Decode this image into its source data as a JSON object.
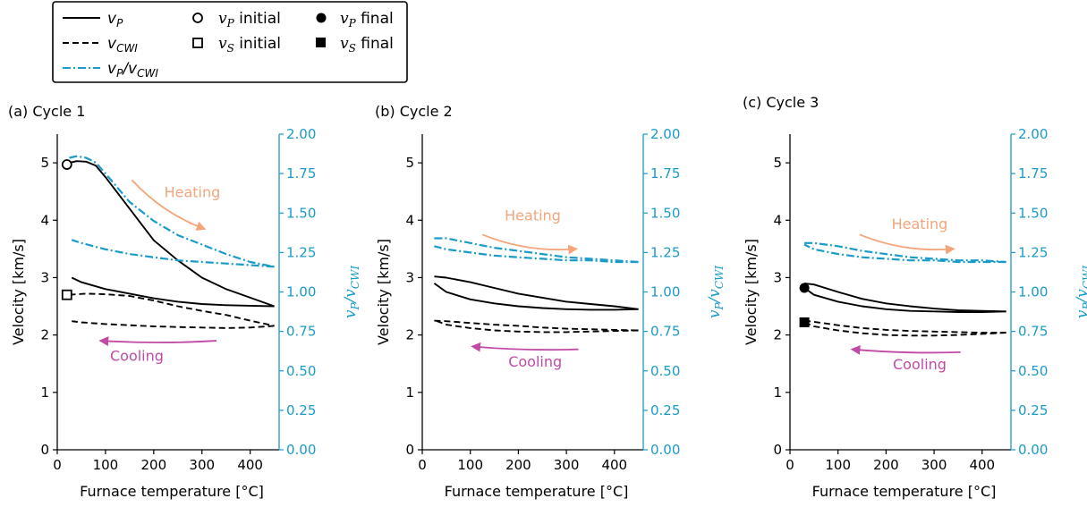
{
  "legend": {
    "items": [
      {
        "key": "vp_line",
        "label": "v",
        "sub": "P",
        "suffix": ""
      },
      {
        "key": "vcwi_line",
        "label": "v",
        "sub": "CWI",
        "suffix": ""
      },
      {
        "key": "ratio",
        "label": "v",
        "sub": "P",
        "suffix": "/v",
        "sub2": "CWI"
      },
      {
        "key": "vp_init",
        "label": "v",
        "sub": "P",
        "suffix": " initial"
      },
      {
        "key": "vs_init",
        "label": "v",
        "sub": "S",
        "suffix": " initial"
      },
      {
        "key": "vp_final",
        "label": "v",
        "sub": "P",
        "suffix": " final"
      },
      {
        "key": "vs_final",
        "label": "v",
        "sub": "S",
        "suffix": " final"
      }
    ]
  },
  "colors": {
    "vp": "#000000",
    "vcwi": "#000000",
    "ratio": "#1a9bc9",
    "heating": "#f4a57a",
    "cooling": "#c04aa5"
  },
  "axes_text": {
    "xlabel": "Furnace temperature [°C]",
    "ylabel": "Velocity [km/s]",
    "y2label_main": "v",
    "y2label_sub1": "P",
    "y2label_mid": "/v",
    "y2label_sub2": "CWI",
    "xticks": [
      0,
      100,
      200,
      300,
      400
    ],
    "yticks": [
      0,
      1,
      2,
      3,
      4,
      5
    ],
    "y2ticks": [
      "0.00",
      "0.25",
      "0.50",
      "0.75",
      "1.00",
      "1.25",
      "1.50",
      "1.75",
      "2.00"
    ],
    "heating_label": "Heating",
    "cooling_label": "Cooling"
  },
  "chart_data": [
    {
      "type": "line",
      "title": "(a) Cycle 1",
      "xlabel": "Furnace temperature [°C]",
      "ylabel": "Velocity [km/s]",
      "y2label": "vP/vCWI",
      "xlim": [
        0,
        460
      ],
      "ylim": [
        0,
        5.5
      ],
      "y2lim": [
        0,
        2.0
      ],
      "series": [
        {
          "key": "vp_heating",
          "axis": "left",
          "style": "solid",
          "x": [
            25,
            40,
            60,
            80,
            100,
            150,
            200,
            250,
            300,
            350,
            400,
            450
          ],
          "y": [
            5.0,
            5.03,
            5.02,
            4.95,
            4.75,
            4.2,
            3.65,
            3.3,
            3.0,
            2.8,
            2.65,
            2.5
          ]
        },
        {
          "key": "vp_cooling",
          "axis": "left",
          "style": "solid",
          "x": [
            450,
            400,
            350,
            300,
            250,
            200,
            150,
            100,
            50,
            30
          ],
          "y": [
            2.5,
            2.51,
            2.52,
            2.54,
            2.58,
            2.64,
            2.72,
            2.8,
            2.92,
            3.0
          ]
        },
        {
          "key": "vcwi_heating",
          "axis": "left",
          "style": "dashed",
          "x": [
            25,
            60,
            100,
            150,
            200,
            250,
            300,
            350,
            400,
            450
          ],
          "y": [
            2.7,
            2.72,
            2.71,
            2.68,
            2.6,
            2.5,
            2.42,
            2.35,
            2.25,
            2.16
          ]
        },
        {
          "key": "vcwi_cooling",
          "axis": "left",
          "style": "dashed",
          "x": [
            450,
            400,
            350,
            300,
            250,
            200,
            150,
            100,
            50,
            30
          ],
          "y": [
            2.16,
            2.13,
            2.12,
            2.13,
            2.14,
            2.15,
            2.17,
            2.19,
            2.22,
            2.24
          ]
        },
        {
          "key": "ratio_heating",
          "axis": "right",
          "style": "dashdot",
          "x": [
            25,
            40,
            60,
            80,
            100,
            150,
            200,
            250,
            300,
            350,
            400,
            450
          ],
          "y": [
            1.85,
            1.86,
            1.85,
            1.82,
            1.75,
            1.57,
            1.45,
            1.36,
            1.3,
            1.24,
            1.19,
            1.16
          ]
        },
        {
          "key": "ratio_cooling",
          "axis": "right",
          "style": "dashdot",
          "x": [
            450,
            400,
            350,
            300,
            250,
            200,
            150,
            100,
            50,
            30
          ],
          "y": [
            1.16,
            1.17,
            1.18,
            1.19,
            1.2,
            1.22,
            1.24,
            1.27,
            1.31,
            1.33
          ]
        }
      ],
      "markers": [
        {
          "type": "vp_initial",
          "x": 20,
          "y": 4.97
        },
        {
          "type": "vs_initial",
          "x": 20,
          "y": 2.7
        }
      ]
    },
    {
      "type": "line",
      "title": "(b) Cycle 2",
      "xlabel": "Furnace temperature [°C]",
      "ylabel": "Velocity [km/s]",
      "y2label": "vP/vCWI",
      "xlim": [
        0,
        460
      ],
      "ylim": [
        0,
        5.5
      ],
      "y2lim": [
        0,
        2.0
      ],
      "series": [
        {
          "key": "vp_heating",
          "axis": "left",
          "style": "solid",
          "x": [
            25,
            50,
            100,
            150,
            200,
            250,
            300,
            350,
            400,
            450
          ],
          "y": [
            3.02,
            3.0,
            2.92,
            2.82,
            2.72,
            2.65,
            2.58,
            2.54,
            2.5,
            2.45
          ]
        },
        {
          "key": "vp_cooling",
          "axis": "left",
          "style": "solid",
          "x": [
            450,
            400,
            350,
            300,
            250,
            200,
            150,
            100,
            50,
            25
          ],
          "y": [
            2.45,
            2.44,
            2.44,
            2.45,
            2.47,
            2.5,
            2.55,
            2.62,
            2.75,
            2.9
          ]
        },
        {
          "key": "vcwi_heating",
          "axis": "left",
          "style": "dashed",
          "x": [
            25,
            50,
            100,
            150,
            200,
            250,
            300,
            350,
            400,
            450
          ],
          "y": [
            2.25,
            2.24,
            2.21,
            2.18,
            2.16,
            2.13,
            2.11,
            2.1,
            2.09,
            2.08
          ]
        },
        {
          "key": "vcwi_cooling",
          "axis": "left",
          "style": "dashed",
          "x": [
            450,
            400,
            350,
            300,
            250,
            200,
            150,
            100,
            50,
            25
          ],
          "y": [
            2.08,
            2.07,
            2.06,
            2.05,
            2.05,
            2.06,
            2.08,
            2.12,
            2.18,
            2.26
          ]
        },
        {
          "key": "ratio_heating",
          "axis": "right",
          "style": "dashdot",
          "x": [
            25,
            50,
            100,
            150,
            200,
            250,
            300,
            350,
            400,
            450
          ],
          "y": [
            1.34,
            1.34,
            1.31,
            1.28,
            1.26,
            1.24,
            1.22,
            1.21,
            1.2,
            1.19
          ]
        },
        {
          "key": "ratio_cooling",
          "axis": "right",
          "style": "dashdot",
          "x": [
            450,
            400,
            350,
            300,
            250,
            200,
            150,
            100,
            50,
            25
          ],
          "y": [
            1.19,
            1.19,
            1.2,
            1.2,
            1.21,
            1.22,
            1.23,
            1.25,
            1.27,
            1.29
          ]
        }
      ],
      "markers": []
    },
    {
      "type": "line",
      "title": "(c) Cycle 3",
      "xlabel": "Furnace temperature [°C]",
      "ylabel": "Velocity [km/s]",
      "y2label": "vP/vCWI",
      "xlim": [
        0,
        460
      ],
      "ylim": [
        0,
        5.5
      ],
      "y2lim": [
        0,
        2.0
      ],
      "series": [
        {
          "key": "vp_heating",
          "axis": "left",
          "style": "solid",
          "x": [
            30,
            50,
            100,
            150,
            200,
            250,
            300,
            350,
            400,
            450
          ],
          "y": [
            2.9,
            2.88,
            2.75,
            2.63,
            2.55,
            2.5,
            2.46,
            2.43,
            2.42,
            2.41
          ]
        },
        {
          "key": "vp_cooling",
          "axis": "left",
          "style": "solid",
          "x": [
            450,
            400,
            350,
            300,
            250,
            200,
            150,
            100,
            50,
            30
          ],
          "y": [
            2.41,
            2.4,
            2.4,
            2.41,
            2.42,
            2.45,
            2.5,
            2.58,
            2.7,
            2.82
          ]
        },
        {
          "key": "vcwi_heating",
          "axis": "left",
          "style": "dashed",
          "x": [
            30,
            50,
            100,
            150,
            200,
            250,
            300,
            350,
            400,
            450
          ],
          "y": [
            2.25,
            2.23,
            2.17,
            2.12,
            2.09,
            2.07,
            2.06,
            2.05,
            2.04,
            2.04
          ]
        },
        {
          "key": "vcwi_cooling",
          "axis": "left",
          "style": "dashed",
          "x": [
            450,
            400,
            350,
            300,
            250,
            200,
            150,
            100,
            50,
            30
          ],
          "y": [
            2.04,
            2.02,
            2.0,
            1.99,
            1.99,
            2.0,
            2.03,
            2.08,
            2.15,
            2.22
          ]
        },
        {
          "key": "ratio_heating",
          "axis": "right",
          "style": "dashdot",
          "x": [
            30,
            50,
            100,
            150,
            200,
            250,
            300,
            350,
            400,
            450
          ],
          "y": [
            1.31,
            1.31,
            1.29,
            1.26,
            1.24,
            1.22,
            1.21,
            1.2,
            1.2,
            1.19
          ]
        },
        {
          "key": "ratio_cooling",
          "axis": "right",
          "style": "dashdot",
          "x": [
            450,
            400,
            350,
            300,
            250,
            200,
            150,
            100,
            50,
            30
          ],
          "y": [
            1.19,
            1.19,
            1.19,
            1.2,
            1.2,
            1.21,
            1.22,
            1.24,
            1.27,
            1.3
          ]
        }
      ],
      "markers": [
        {
          "type": "vp_final",
          "x": 30,
          "y": 2.82
        },
        {
          "type": "vs_final",
          "x": 30,
          "y": 2.22
        }
      ]
    }
  ]
}
